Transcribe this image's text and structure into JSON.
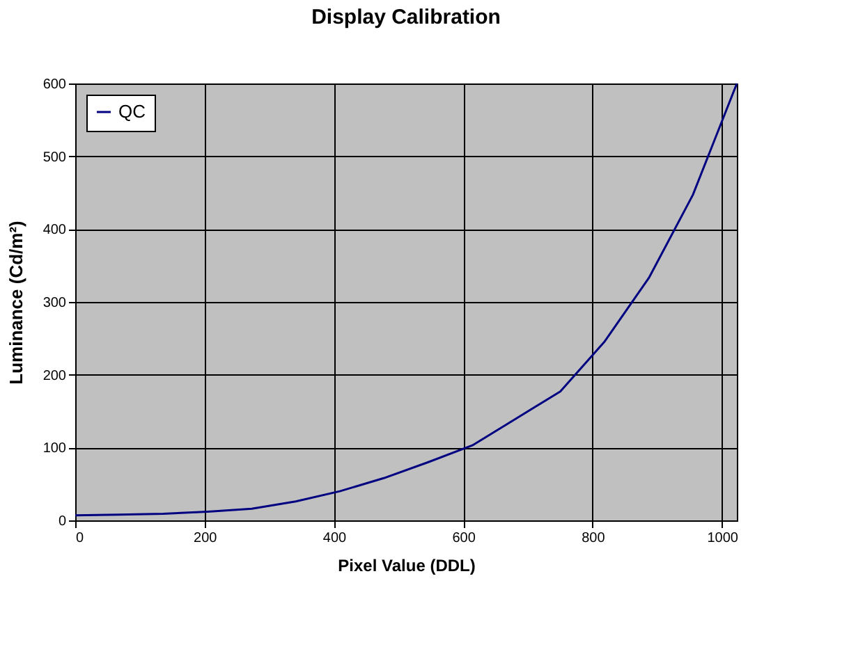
{
  "chart_data": {
    "type": "line",
    "title": "Display Calibration",
    "xlabel": "Pixel Value (DDL)",
    "ylabel": "Luminance (Cd/m²)",
    "x": [
      0,
      68,
      136,
      205,
      273,
      341,
      409,
      477,
      546,
      614,
      682,
      750,
      818,
      887,
      955,
      1023
    ],
    "series": [
      {
        "name": "QC",
        "color": "#000080",
        "values": [
          7,
          8,
          9,
          12,
          16,
          26,
          40,
          58,
          80,
          103,
          140,
          177,
          245,
          333,
          447,
          600
        ]
      }
    ],
    "xlim": [
      0,
      1023
    ],
    "xticks": [
      0,
      200,
      400,
      600,
      800,
      1000
    ],
    "ylim": [
      0,
      600
    ],
    "yticks": [
      0,
      100,
      200,
      300,
      400,
      500,
      600
    ],
    "grid": true,
    "legend": "top left",
    "marker": "none",
    "line_style": "solid"
  }
}
